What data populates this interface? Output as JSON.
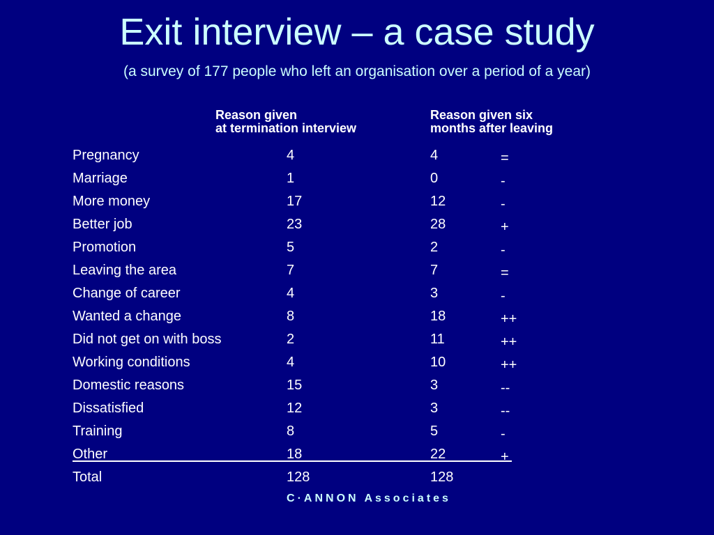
{
  "title": "Exit interview – a case study",
  "subtitle": "(a survey of 177 people who left an organisation over a period of a year)",
  "columns": {
    "termination": [
      "Reason given",
      "at termination interview"
    ],
    "six_months": [
      "Reason given six",
      "months after leaving"
    ]
  },
  "rows": [
    {
      "reason": "Pregnancy",
      "termination": "4",
      "six_months": "4",
      "change": "="
    },
    {
      "reason": "Marriage",
      "termination": "1",
      "six_months": "0",
      "change": "-"
    },
    {
      "reason": "More money",
      "termination": "17",
      "six_months": "12",
      "change": "-"
    },
    {
      "reason": "Better job",
      "termination": "23",
      "six_months": "28",
      "change": "+"
    },
    {
      "reason": "Promotion",
      "termination": "5",
      "six_months": "2",
      "change": "-"
    },
    {
      "reason": "Leaving the area",
      "termination": "7",
      "six_months": "7",
      "change": "="
    },
    {
      "reason": "Change of career",
      "termination": "4",
      "six_months": "3",
      "change": "-"
    },
    {
      "reason": "Wanted a change",
      "termination": "8",
      "six_months": "18",
      "change": "++"
    },
    {
      "reason": "Did not get on with boss",
      "termination": "2",
      "six_months": "11",
      "change": "++"
    },
    {
      "reason": "Working conditions",
      "termination": "4",
      "six_months": "10",
      "change": "++"
    },
    {
      "reason": "Domestic reasons",
      "termination": "15",
      "six_months": "3",
      "change": "--"
    },
    {
      "reason": "Dissatisfied",
      "termination": "12",
      "six_months": "3",
      "change": "--"
    },
    {
      "reason": "Training",
      "termination": "8",
      "six_months": "5",
      "change": "-"
    },
    {
      "reason": "Other",
      "termination": "18",
      "six_months": "22",
      "change": "+"
    },
    {
      "reason": "Total",
      "termination": "128",
      "six_months": "128",
      "change": ""
    }
  ],
  "footer": "C·ANNON Associates",
  "colors": {
    "background": "#000080",
    "title": "#ccffff",
    "text": "#ffffff"
  }
}
